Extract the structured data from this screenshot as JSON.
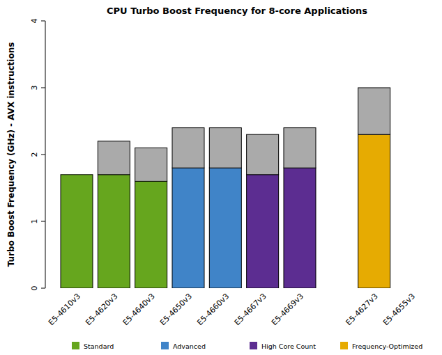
{
  "chart_data": {
    "type": "bar",
    "title": "CPU Turbo Boost Frequency for 8-core Applications",
    "y_label": "Turbo Boost Frequency (GHz) - AVX instructions",
    "categories": [
      "E5-4610v3",
      "E5-4620v3",
      "E5-4640v3",
      "E5-4650v3",
      "E5-4660v3",
      "E5-4667v3",
      "E5-4669v3",
      null,
      "E5-4627v3",
      "E5-4655v3"
    ],
    "series": [
      {
        "name": "Standard",
        "color": "#66a61e",
        "values": [
          1.7,
          1.7,
          1.6,
          null,
          null,
          null,
          null,
          null,
          null,
          null
        ]
      },
      {
        "name": "Advanced",
        "color": "#4084c8",
        "values": [
          null,
          null,
          null,
          1.8,
          1.8,
          null,
          null,
          null,
          null,
          null
        ]
      },
      {
        "name": "High Core Count",
        "color": "#5c2d91",
        "values": [
          null,
          null,
          null,
          null,
          null,
          1.7,
          1.8,
          null,
          null,
          null
        ]
      },
      {
        "name": "Frequency-Optimized",
        "color": "#e6ab02",
        "values": [
          null,
          null,
          null,
          null,
          null,
          null,
          null,
          null,
          2.3,
          null
        ]
      },
      {
        "color": "#aaaaaa",
        "values": [
          0,
          0.5,
          0.5,
          0.6,
          0.6,
          0.6,
          0.6,
          null,
          0.7,
          null
        ]
      }
    ],
    "stacked": true,
    "legend": "bottom",
    "ylim": [
      0,
      4
    ],
    "yticks": [
      0,
      1,
      2,
      3,
      4
    ]
  }
}
